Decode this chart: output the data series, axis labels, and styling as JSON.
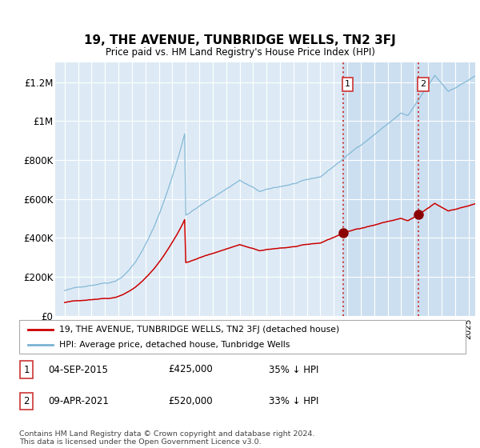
{
  "title": "19, THE AVENUE, TUNBRIDGE WELLS, TN2 3FJ",
  "subtitle": "Price paid vs. HM Land Registry's House Price Index (HPI)",
  "ylabel_vals": [
    "£0",
    "£200K",
    "£400K",
    "£600K",
    "£800K",
    "£1M",
    "£1.2M"
  ],
  "ylim": [
    0,
    1300000
  ],
  "yticks": [
    0,
    200000,
    400000,
    600000,
    800000,
    1000000,
    1200000
  ],
  "bg_color": "#ddeaf5",
  "hpi_color": "#7ab3d4",
  "price_color": "#cc0000",
  "marker_color": "#8b0000",
  "sale1_year": 2015.67,
  "sale1_price": 425000,
  "sale2_year": 2021.27,
  "sale2_price": 520000,
  "legend_line1": "19, THE AVENUE, TUNBRIDGE WELLS, TN2 3FJ (detached house)",
  "legend_line2": "HPI: Average price, detached house, Tunbridge Wells",
  "table_row1": [
    "1",
    "04-SEP-2015",
    "£425,000",
    "35% ↓ HPI"
  ],
  "table_row2": [
    "2",
    "09-APR-2021",
    "£520,000",
    "33% ↓ HPI"
  ],
  "footer": "Contains HM Land Registry data © Crown copyright and database right 2024.\nThis data is licensed under the Open Government Licence v3.0.",
  "shade_color": "#ccdff0",
  "vline_color": "#cc4444"
}
